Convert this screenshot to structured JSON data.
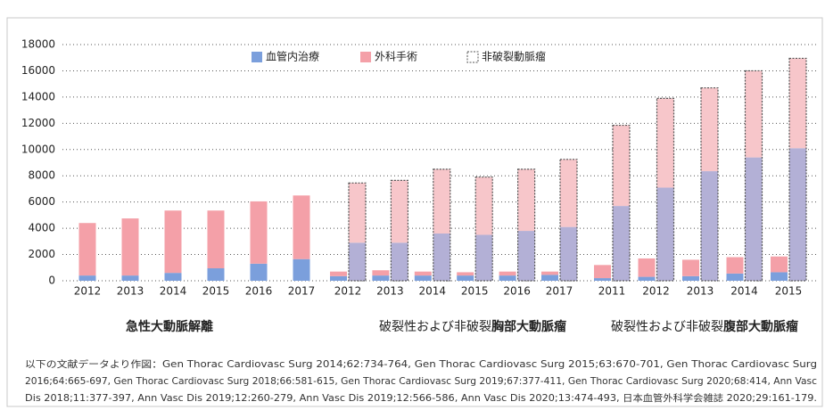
{
  "chart_data": {
    "type": "bar",
    "ylim": [
      0,
      18000
    ],
    "yticks": [
      0,
      2000,
      4000,
      6000,
      8000,
      10000,
      12000,
      14000,
      16000,
      18000
    ],
    "grid": true,
    "legend": [
      {
        "name": "血管内治療",
        "color": "#7b9fdc"
      },
      {
        "name": "外科手術",
        "color": "#f4a0a8"
      },
      {
        "name": "非破裂動脈瘤",
        "outline": "dashed"
      }
    ],
    "groups": [
      {
        "label_parts": [
          {
            "text": "急性大動脈解離",
            "bold": true
          }
        ],
        "categories": [
          "2012",
          "2013",
          "2014",
          "2015",
          "2016",
          "2017"
        ],
        "series": [
          {
            "color": "#7b9fdc",
            "outline": "solid",
            "values": [
              400,
              400,
              600,
              950,
              1300,
              1650
            ]
          },
          {
            "color": "#f4a0a8",
            "outline": "solid",
            "values": [
              4000,
              4350,
              4750,
              4400,
              4750,
              4850
            ]
          }
        ]
      },
      {
        "label_parts": [
          {
            "text": "破裂性および非破裂",
            "bold": false
          },
          {
            "text": "胸部大動脈瘤",
            "bold": true
          }
        ],
        "categories": [
          "2012",
          "2013",
          "2014",
          "2015",
          "2016",
          "2017"
        ],
        "series": [
          {
            "color": "#7b9fdc",
            "outline": "solid",
            "values": [
              350,
              400,
              400,
              400,
              400,
              450
            ]
          },
          {
            "color": "#f4a0a8",
            "outline": "solid",
            "values": [
              350,
              400,
              300,
              250,
              300,
              250
            ]
          },
          {
            "color": "#b3b0d6",
            "outline": "dashed",
            "values": [
              2900,
              2900,
              3600,
              3500,
              3800,
              4100
            ]
          },
          {
            "color": "#f7c6ca",
            "outline": "dashed",
            "values": [
              4550,
              4750,
              4900,
              4400,
              4700,
              5150
            ]
          }
        ]
      },
      {
        "label_parts": [
          {
            "text": "破裂性および非破裂",
            "bold": false
          },
          {
            "text": "腹部大動脈瘤",
            "bold": true
          }
        ],
        "categories": [
          "2011",
          "2012",
          "2013",
          "2014",
          "2015"
        ],
        "series": [
          {
            "color": "#7b9fdc",
            "outline": "solid",
            "values": [
              200,
              300,
              350,
              550,
              650
            ]
          },
          {
            "color": "#f4a0a8",
            "outline": "solid",
            "values": [
              1000,
              1400,
              1250,
              1250,
              1200
            ]
          },
          {
            "color": "#b3b0d6",
            "outline": "dashed",
            "values": [
              5700,
              7100,
              8350,
              9400,
              10100
            ]
          },
          {
            "color": "#f7c6ca",
            "outline": "dashed",
            "values": [
              6150,
              6800,
              6350,
              6600,
              6850
            ]
          }
        ]
      }
    ],
    "note_lines": [
      "以下の文献データより作図：Gen Thorac Cardiovasc Surg 2014;62:734-764, Gen Thorac Cardiovasc Surg 2015;63:670-701, Gen Thorac Cardiovasc Surg",
      "2016;64:665-697, Gen Thorac Cardiovasc Surg 2018;66:581-615, Gen Thorac Cardiovasc Surg 2019;67:377-411, Gen Thorac Cardiovasc Surg 2020;68:414, Ann Vasc",
      "Dis 2018;11:377-397, Ann Vasc Dis 2019;12:260-279, Ann Vasc Dis 2019;12:566-586, Ann Vasc Dis 2020;13:474-493, 日本血管外科学会雑誌 2020;29:161-179."
    ]
  }
}
